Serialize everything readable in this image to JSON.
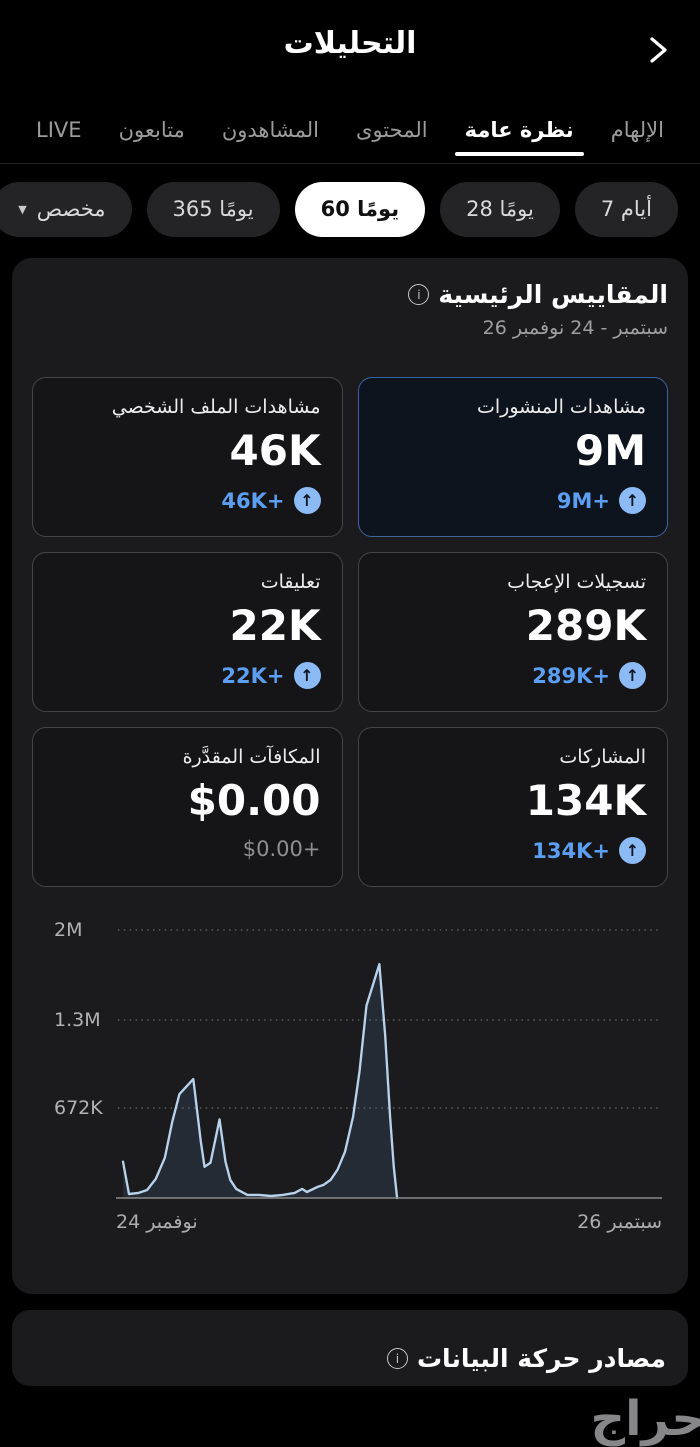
{
  "header": {
    "title": "التحليلات"
  },
  "tabs": [
    {
      "label": "الإلهام",
      "active": false
    },
    {
      "label": "نظرة عامة",
      "active": true
    },
    {
      "label": "المحتوى",
      "active": false
    },
    {
      "label": "المشاهدون",
      "active": false
    },
    {
      "label": "متابعون",
      "active": false
    },
    {
      "label": "LIVE",
      "active": false
    }
  ],
  "date_filters": [
    {
      "label": "7 أيام",
      "selected": false
    },
    {
      "label": "28 يومًا",
      "selected": false
    },
    {
      "label": "60 يومًا",
      "selected": true
    },
    {
      "label": "365 يومًا",
      "selected": false
    },
    {
      "label": "مخصص",
      "selected": false,
      "has_caret": true
    }
  ],
  "key_metrics": {
    "title": "المقاييس الرئيسية",
    "date_range": "26 سبتمبر - 24 نوفمبر",
    "cards": [
      {
        "label": "مشاهدات المنشورات",
        "value": "9M",
        "delta": "9M+",
        "selected": true,
        "delta_style": "positive"
      },
      {
        "label": "مشاهدات الملف الشخصي",
        "value": "46K",
        "delta": "46K+",
        "selected": false,
        "delta_style": "positive"
      },
      {
        "label": "تسجيلات الإعجاب",
        "value": "289K",
        "delta": "289K+",
        "selected": false,
        "delta_style": "positive"
      },
      {
        "label": "تعليقات",
        "value": "22K",
        "delta": "22K+",
        "selected": false,
        "delta_style": "positive"
      },
      {
        "label": "المشاركات",
        "value": "134K",
        "delta": "134K+",
        "selected": false,
        "delta_style": "positive"
      },
      {
        "label": "المكافآت المقدَّرة",
        "value": "$0.00",
        "delta": "$0.00+",
        "selected": false,
        "delta_style": "neutral"
      }
    ]
  },
  "chart_data": {
    "type": "area",
    "metric": "مشاهدات المنشورات",
    "y_ticks": [
      "2M",
      "1.3M",
      "672K"
    ],
    "y_tick_values_k": [
      2016,
      1344,
      672
    ],
    "y_axis_max_k": 2100,
    "x_left_label": "24 نوفمبر",
    "x_right_label": "26 سبتمبر",
    "x_direction": "rtl-time-axis (most recent date on left, line covers ~left half; flat/no data toward 26 Sep)",
    "grid": "dotted horizontal gridlines at each y tick",
    "points_note": "points are [fraction across plot from left 0-1, value in thousands]",
    "points": [
      [
        0.004,
        271
      ],
      [
        0.015,
        30
      ],
      [
        0.033,
        38
      ],
      [
        0.049,
        60
      ],
      [
        0.065,
        143
      ],
      [
        0.082,
        301
      ],
      [
        0.096,
        572
      ],
      [
        0.109,
        775
      ],
      [
        0.135,
        888
      ],
      [
        0.149,
        421
      ],
      [
        0.156,
        233
      ],
      [
        0.167,
        263
      ],
      [
        0.184,
        587
      ],
      [
        0.195,
        271
      ],
      [
        0.204,
        135
      ],
      [
        0.215,
        68
      ],
      [
        0.236,
        23
      ],
      [
        0.258,
        23
      ],
      [
        0.28,
        15
      ],
      [
        0.302,
        23
      ],
      [
        0.324,
        38
      ],
      [
        0.338,
        68
      ],
      [
        0.347,
        45
      ],
      [
        0.367,
        83
      ],
      [
        0.378,
        98
      ],
      [
        0.391,
        135
      ],
      [
        0.404,
        211
      ],
      [
        0.418,
        346
      ],
      [
        0.433,
        609
      ],
      [
        0.445,
        948
      ],
      [
        0.458,
        1437
      ],
      [
        0.482,
        1746
      ],
      [
        0.493,
        1211
      ],
      [
        0.502,
        609
      ],
      [
        0.509,
        233
      ],
      [
        0.515,
        0
      ]
    ]
  },
  "traffic_sources": {
    "title": "مصادر حركة البيانات"
  },
  "watermark": "حراج",
  "icons": {
    "back": "chevron-right-icon",
    "info": "info-circle-icon",
    "delta": "arrow-up-circle-icon",
    "custom_filter": "caret-down-icon"
  },
  "colors": {
    "page_bg": "#000000",
    "card_bg": "#1b1b1d",
    "tile_bg": "#151517",
    "tile_border": "#454547",
    "selected_tile_bg": "#0e141d",
    "selected_tile_border": "#3c639c",
    "accent_blue_text": "#5c9ef2",
    "delta_icon_bg": "#8cbaf5",
    "active_pill_bg": "#ffffff",
    "pill_bg": "#242427",
    "chart_line": "#b7d2ea",
    "inactive_tab": "#9c9c9c"
  }
}
